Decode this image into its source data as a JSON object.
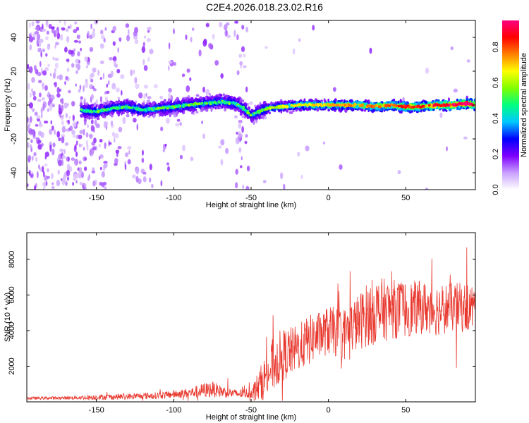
{
  "title": "C2E4.2026.018.23.02.R16",
  "chart_data": [
    {
      "type": "heatmap",
      "xlabel": "Height of straight line (km)",
      "ylabel": "Frequency (Hz)",
      "xlim": [
        -195,
        95
      ],
      "ylim": [
        -50,
        50
      ],
      "xticks": [
        -150,
        -100,
        -50,
        0,
        50
      ],
      "yticks": [
        -40,
        -20,
        0,
        20,
        40
      ],
      "colorbar": {
        "label": "Normalized spectral amplitude",
        "range": [
          0,
          0.95
        ],
        "ticks": [
          0,
          0.2,
          0.4,
          0.6,
          0.8
        ],
        "tick_labels": [
          "0.0",
          "0.2",
          "0.4",
          "0.6",
          "0.8"
        ],
        "colors": [
          "#ffffff",
          "#c9a0ff",
          "#7f00ff",
          "#0000ff",
          "#00c8ff",
          "#00ff80",
          "#80ff00",
          "#ffff00",
          "#ff8000",
          "#ff0000",
          "#ff0080"
        ]
      },
      "center_line": {
        "x": [
          -160,
          -150,
          -140,
          -130,
          -120,
          -110,
          -100,
          -90,
          -80,
          -70,
          -60,
          -55,
          -50,
          -45,
          -40,
          -30,
          -20,
          -10,
          0,
          10,
          20,
          30,
          40,
          50,
          60,
          70,
          80,
          90,
          95
        ],
        "y": [
          -3,
          -4,
          -2,
          -1,
          -3,
          -2,
          -1,
          0,
          1,
          2,
          1,
          -2,
          -6,
          -4,
          -2,
          -1,
          0,
          0,
          0,
          0,
          0,
          -1,
          0,
          -1,
          -1,
          0,
          0,
          1,
          0
        ]
      }
    },
    {
      "type": "line",
      "xlabel": "Height of straight line (km)",
      "ylabel": "SNR (10 * v/v)",
      "xlim": [
        -195,
        95
      ],
      "ylim": [
        0,
        9500
      ],
      "xticks": [
        -150,
        -100,
        -50,
        0,
        50
      ],
      "yticks": [
        2000,
        4000,
        6000,
        8000
      ],
      "series": [
        {
          "color": "#e8382e",
          "envelope_x": [
            -195,
            -170,
            -150,
            -140,
            -130,
            -120,
            -110,
            -100,
            -90,
            -80,
            -75,
            -70,
            -60,
            -50,
            -45,
            -40,
            -35,
            -30,
            -25,
            -20,
            -15,
            -10,
            -5,
            0,
            5,
            10,
            15,
            20,
            25,
            30,
            40,
            50,
            60,
            70,
            80,
            90,
            95
          ],
          "envelope_mean": [
            200,
            220,
            260,
            280,
            300,
            330,
            360,
            420,
            500,
            650,
            700,
            600,
            450,
            500,
            900,
            1500,
            2200,
            2600,
            2800,
            3000,
            3300,
            3600,
            3800,
            4000,
            3900,
            3800,
            4200,
            4500,
            4900,
            5100,
            5200,
            5200,
            5300,
            5200,
            5300,
            5300,
            5300
          ],
          "envelope_spread": [
            80,
            90,
            150,
            160,
            170,
            180,
            190,
            220,
            280,
            420,
            450,
            350,
            250,
            300,
            900,
            1300,
            1600,
            1500,
            1400,
            1300,
            1400,
            1400,
            1300,
            1400,
            1400,
            1500,
            1500,
            1600,
            1800,
            1900,
            1700,
            1600,
            1500,
            1500,
            1400,
            1400,
            1300
          ]
        }
      ]
    }
  ]
}
